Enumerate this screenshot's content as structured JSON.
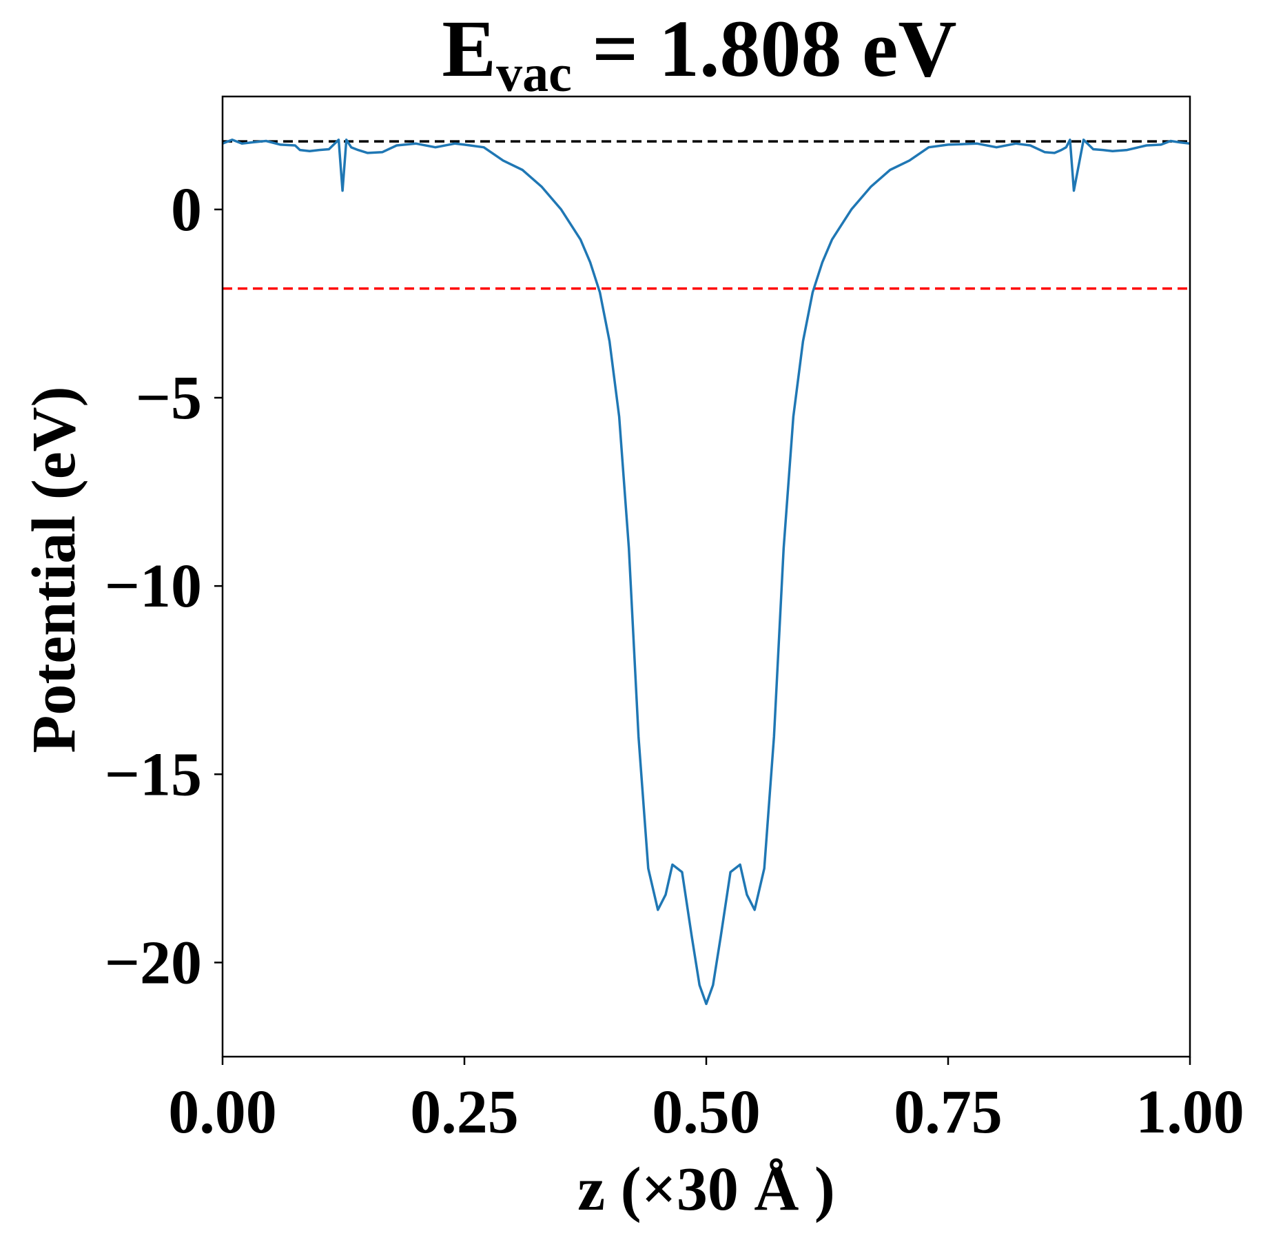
{
  "chart_data": {
    "type": "line",
    "title": {
      "base": "E",
      "subscript": "vac",
      "rest": " = 1.808 eV"
    },
    "xlabel": "z (×30 Å )",
    "ylabel": "Potential (eV)",
    "xlim": [
      0.0,
      1.0
    ],
    "ylim": [
      -22.5,
      3.0
    ],
    "xticks": [
      0.0,
      0.25,
      0.5,
      0.75,
      1.0
    ],
    "xtick_labels": [
      "0.00",
      "0.25",
      "0.50",
      "0.75",
      "1.00"
    ],
    "yticks": [
      0,
      -5,
      -10,
      -15,
      -20
    ],
    "ytick_labels": [
      "0",
      "−5",
      "−10",
      "−15",
      "−20"
    ],
    "grid": false,
    "series": [
      {
        "color": "#1f77b4",
        "x": [
          0.0,
          0.01,
          0.02,
          0.03,
          0.045,
          0.06,
          0.075,
          0.08,
          0.09,
          0.1,
          0.11,
          0.12,
          0.124,
          0.128,
          0.133,
          0.14,
          0.15,
          0.165,
          0.18,
          0.2,
          0.22,
          0.24,
          0.25,
          0.27,
          0.29,
          0.31,
          0.33,
          0.35,
          0.37,
          0.38,
          0.39,
          0.4,
          0.41,
          0.42,
          0.43,
          0.44,
          0.45,
          0.458,
          0.465,
          0.475,
          0.485,
          0.493,
          0.5,
          0.507,
          0.515,
          0.525,
          0.535,
          0.542,
          0.55,
          0.56,
          0.57,
          0.58,
          0.59,
          0.6,
          0.61,
          0.62,
          0.63,
          0.65,
          0.67,
          0.69,
          0.71,
          0.73,
          0.75,
          0.78,
          0.8,
          0.82,
          0.835,
          0.85,
          0.86,
          0.867,
          0.872,
          0.876,
          0.88,
          0.89,
          0.9,
          0.91,
          0.92,
          0.935,
          0.955,
          0.97,
          0.98,
          0.99,
          1.0
        ],
        "y": [
          1.75,
          1.85,
          1.75,
          1.78,
          1.82,
          1.72,
          1.7,
          1.58,
          1.55,
          1.58,
          1.6,
          1.85,
          0.5,
          1.85,
          1.65,
          1.58,
          1.5,
          1.52,
          1.7,
          1.75,
          1.65,
          1.75,
          1.72,
          1.65,
          1.3,
          1.05,
          0.6,
          0.0,
          -0.8,
          -1.4,
          -2.2,
          -3.5,
          -5.5,
          -9.0,
          -14.0,
          -17.5,
          -18.6,
          -18.2,
          -17.4,
          -17.6,
          -19.3,
          -20.6,
          -21.1,
          -20.6,
          -19.3,
          -17.6,
          -17.4,
          -18.2,
          -18.6,
          -17.5,
          -14.0,
          -9.0,
          -5.5,
          -3.5,
          -2.2,
          -1.4,
          -0.8,
          0.0,
          0.6,
          1.05,
          1.3,
          1.65,
          1.72,
          1.75,
          1.65,
          1.75,
          1.7,
          1.52,
          1.5,
          1.58,
          1.65,
          1.85,
          0.5,
          1.85,
          1.6,
          1.58,
          1.55,
          1.58,
          1.7,
          1.72,
          1.82,
          1.78,
          1.75
        ]
      }
    ],
    "reference_lines": [
      {
        "y": 1.808,
        "color": "#000000",
        "style": "dashed"
      },
      {
        "y": -2.1,
        "color": "#ff0000",
        "style": "dashed"
      }
    ]
  }
}
